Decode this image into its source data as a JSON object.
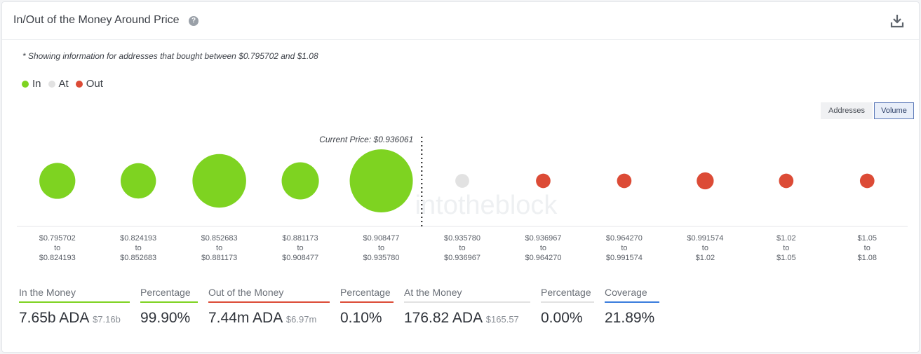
{
  "header": {
    "title": "In/Out of the Money Around Price",
    "help_icon": "question-circle-icon",
    "download_icon": "download-icon"
  },
  "note": "* Showing information for addresses that bought between $0.795702 and $1.08",
  "legend": [
    {
      "label": "In",
      "color": "#7ed321"
    },
    {
      "label": "At",
      "color": "#e2e2e2"
    },
    {
      "label": "Out",
      "color": "#dc4b36"
    }
  ],
  "toggles": {
    "addresses": "Addresses",
    "volume": "Volume",
    "active": "volume"
  },
  "colors": {
    "in": "#7ed321",
    "at": "#e2e2e2",
    "out": "#dc4b36",
    "divider": "#222222",
    "axis": "#e4e6ea"
  },
  "watermark": "intotheblock",
  "chart_data": {
    "type": "scatter",
    "current_price_label": "Current Price: $0.936061",
    "current_price_after_index": 4,
    "buckets": [
      {
        "from": "$0.795702",
        "to": "$0.824193",
        "status": "in",
        "relative_size": 0.57
      },
      {
        "from": "$0.824193",
        "to": "$0.852683",
        "status": "in",
        "relative_size": 0.56
      },
      {
        "from": "$0.852683",
        "to": "$0.881173",
        "status": "in",
        "relative_size": 0.85
      },
      {
        "from": "$0.881173",
        "to": "$0.908477",
        "status": "in",
        "relative_size": 0.59
      },
      {
        "from": "$0.908477",
        "to": "$0.935780",
        "status": "in",
        "relative_size": 1.0
      },
      {
        "from": "$0.935780",
        "to": "$0.936967",
        "status": "at",
        "relative_size": 0.22
      },
      {
        "from": "$0.936967",
        "to": "$0.964270",
        "status": "out",
        "relative_size": 0.23
      },
      {
        "from": "$0.964270",
        "to": "$0.991574",
        "status": "out",
        "relative_size": 0.23
      },
      {
        "from": "$0.991574",
        "to": "$1.02",
        "status": "out",
        "relative_size": 0.27
      },
      {
        "from": "$1.02",
        "to": "$1.05",
        "status": "out",
        "relative_size": 0.23
      },
      {
        "from": "$1.05",
        "to": "$1.08",
        "status": "out",
        "relative_size": 0.23
      }
    ],
    "to_word": "to"
  },
  "stats": [
    {
      "key": "in-the-money",
      "label": "In the Money",
      "value": "7.65b ADA",
      "sub": "$7.16b",
      "color": "#7ed321"
    },
    {
      "key": "in-percentage",
      "label": "Percentage",
      "value": "99.90%",
      "sub": "",
      "color": "#7ed321"
    },
    {
      "key": "out-of-the-money",
      "label": "Out of the Money",
      "value": "7.44m ADA",
      "sub": "$6.97m",
      "color": "#dc4b36"
    },
    {
      "key": "out-percentage",
      "label": "Percentage",
      "value": "0.10%",
      "sub": "",
      "color": "#dc4b36"
    },
    {
      "key": "at-the-money",
      "label": "At the Money",
      "value": "176.82 ADA",
      "sub": "$165.57",
      "color": "#e2e2e2"
    },
    {
      "key": "at-percentage",
      "label": "Percentage",
      "value": "0.00%",
      "sub": "",
      "color": "#e2e2e2"
    },
    {
      "key": "coverage",
      "label": "Coverage",
      "value": "21.89%",
      "sub": "",
      "color": "#3b7ddd"
    }
  ]
}
